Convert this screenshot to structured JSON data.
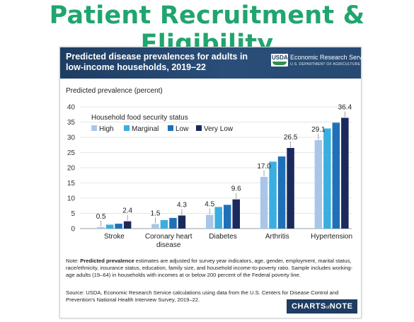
{
  "page": {
    "title": "Patient Recruitment & Eligibility"
  },
  "card": {
    "title": "Predicted disease prevalences for adults in low-income households, 2019–22",
    "logo_text": "USDA",
    "org_name": "Economic Research Service",
    "dept_name": "U.S. DEPARTMENT OF AGRICULTURE",
    "note_label": "Predicted prevalence",
    "note_prefix": "Note: ",
    "note_body": " estimates are adjusted for survey year indicators, age, gender, employment, marital status, race/ethnicity, insurance status, education, family size, and household income-to-poverty ratio. Sample includes working-age adults (19–64) in households with incomes at or below 200 percent of the Federal poverty line.",
    "source": "Source: USDA, Economic Research Service calculations using data from the U.S. Centers for Disease Control and Prevention's National Health Interview Survey, 2019–22.",
    "brand_main": "CHARTS",
    "brand_of": "of",
    "brand_end": "NOTE"
  },
  "chart_data": {
    "type": "bar",
    "title": "",
    "ylabel": "Predicted prevalence (percent)",
    "ylim": [
      0,
      40
    ],
    "yticks": [
      0,
      5,
      10,
      15,
      20,
      25,
      30,
      35,
      40
    ],
    "grid": true,
    "legend_title": "Household food security status",
    "legend_position": "top-left",
    "categories": [
      "Stroke",
      "Coronary heart disease",
      "Diabetes",
      "Arthritis",
      "Hypertension"
    ],
    "category_lines": [
      [
        "Stroke"
      ],
      [
        "Coronary heart",
        "disease"
      ],
      [
        "Diabetes"
      ],
      [
        "Arthritis"
      ],
      [
        "Hypertension"
      ]
    ],
    "series": [
      {
        "name": "High",
        "color": "#a9c6e8",
        "values": [
          0.5,
          1.5,
          4.5,
          17.0,
          29.1
        ]
      },
      {
        "name": "Marginal",
        "color": "#3aaee0",
        "values": [
          1.3,
          2.8,
          7.1,
          22.0,
          32.9
        ]
      },
      {
        "name": "Low",
        "color": "#1f70b8",
        "values": [
          1.6,
          3.5,
          7.8,
          23.7,
          34.8
        ]
      },
      {
        "name": "Very Low",
        "color": "#1b2a5c",
        "values": [
          2.4,
          4.3,
          9.6,
          26.5,
          36.4
        ]
      }
    ],
    "data_labels": [
      {
        "category": 0,
        "series": 0,
        "text": "0.5"
      },
      {
        "category": 0,
        "series": 3,
        "text": "2.4"
      },
      {
        "category": 1,
        "series": 0,
        "text": "1.5"
      },
      {
        "category": 1,
        "series": 3,
        "text": "4.3"
      },
      {
        "category": 2,
        "series": 0,
        "text": "4.5"
      },
      {
        "category": 2,
        "series": 3,
        "text": "9.6"
      },
      {
        "category": 3,
        "series": 0,
        "text": "17.0"
      },
      {
        "category": 3,
        "series": 3,
        "text": "26.5"
      },
      {
        "category": 4,
        "series": 0,
        "text": "29.1"
      },
      {
        "category": 4,
        "series": 3,
        "text": "36.4"
      }
    ]
  }
}
